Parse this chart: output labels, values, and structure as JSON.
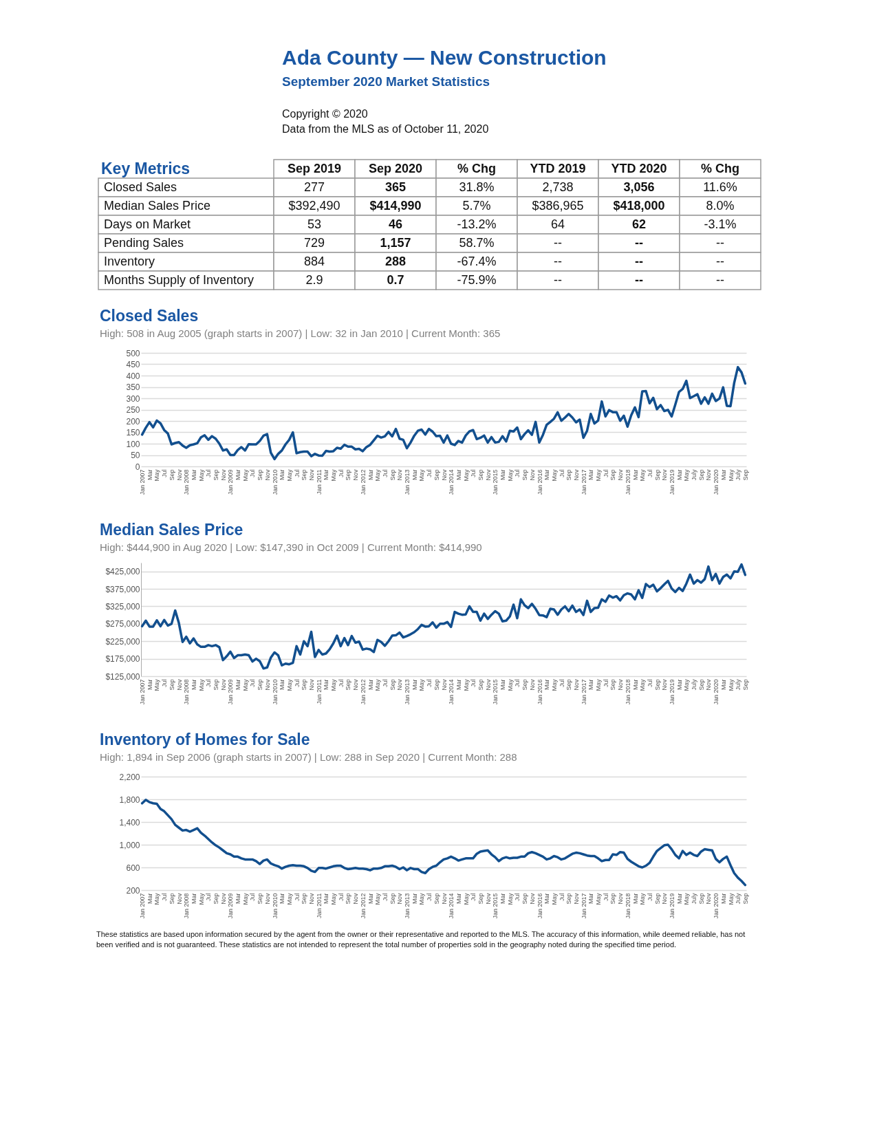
{
  "chart_data": [
    {
      "type": "other",
      "title": "Ada County — New Construction",
      "subtitle": "September 2020 Market Statistics",
      "annotations": [
        "Copyright © 2020",
        "Data from the MLS as of October 11, 2020"
      ]
    },
    {
      "type": "other",
      "title": "Key Metrics",
      "categories": [
        "Sep 2019",
        "Sep 2020",
        "% Chg",
        "YTD 2019",
        "YTD 2020",
        "% Chg"
      ],
      "y_categories": [
        "Closed Sales",
        "Median Sales Price",
        "Days on Market",
        "Pending Sales",
        "Inventory",
        "Months Supply of Inventory"
      ],
      "cell_labels": [
        [
          "277",
          "365",
          "31.8%",
          "2,738",
          "3,056",
          "11.6%"
        ],
        [
          "$392,490",
          "$414,990",
          "5.7%",
          "$386,965",
          "$418,000",
          "8.0%"
        ],
        [
          "53",
          "46",
          "-13.2%",
          "64",
          "62",
          "-3.1%"
        ],
        [
          "729",
          "1,157",
          "58.7%",
          "--",
          "--",
          "--"
        ],
        [
          "884",
          "288",
          "-67.4%",
          "--",
          "--",
          "--"
        ],
        [
          "2.9",
          "0.7",
          "-75.9%",
          "--",
          "--",
          "--"
        ]
      ]
    },
    {
      "type": "line",
      "title": "Closed Sales",
      "subtitle": "High: 508 in Aug 2005 (graph starts in 2007)  |  Low: 32 in Jan 2010  |  Current Month: 365",
      "categories": [
        "Jan 2007",
        null,
        "Mar",
        null,
        "May",
        null,
        "Jul",
        null,
        "Sep",
        null,
        "Nov",
        null,
        "Jan 2008",
        null,
        "Mar",
        null,
        "May",
        null,
        "Jul",
        null,
        "Sep",
        null,
        "Nov",
        null,
        "Jan 2009",
        null,
        "Mar",
        null,
        "May",
        null,
        "Jul",
        null,
        "Sep",
        null,
        "Nov",
        null,
        "Jan 2010",
        null,
        "Mar",
        null,
        "May",
        null,
        "Jul",
        null,
        "Sep",
        null,
        "Nov",
        null,
        "Jan 2011",
        null,
        "Mar",
        null,
        "May",
        null,
        "Jul",
        null,
        "Sep",
        null,
        "Nov",
        null,
        "Jan 2012",
        null,
        "Mar",
        null,
        "May",
        null,
        "Jul",
        null,
        "Sep",
        null,
        "Nov",
        null,
        "Jan 2013",
        null,
        "Mar",
        null,
        "May",
        null,
        "Jul",
        null,
        "Sep",
        null,
        "Nov",
        null,
        "Jan 2014",
        null,
        "Mar",
        null,
        "May",
        null,
        "Jul",
        null,
        "Sep",
        null,
        "Nov",
        null,
        "Jan 2015",
        null,
        "Mar",
        null,
        "May",
        null,
        "Jul",
        null,
        "Sep",
        null,
        "Nov",
        null,
        "Jan 2016",
        null,
        "Mar",
        null,
        "May",
        null,
        "Jul",
        null,
        "Sep",
        null,
        "Nov",
        null,
        "Jan 2017",
        null,
        "Mar",
        null,
        "May",
        null,
        "Jul",
        null,
        "Sep",
        null,
        "Nov",
        null,
        "Jan 2018",
        null,
        "Mar",
        null,
        "May",
        null,
        "Jul",
        null,
        "Sep",
        null,
        "Nov",
        null,
        "Jan 2019",
        null,
        "Mar",
        null,
        "May",
        null,
        "July",
        null,
        "Sep",
        null,
        "Nov",
        null,
        "Jan 2020",
        null,
        "Mar",
        null,
        "May",
        null,
        "July",
        null,
        "Sep"
      ],
      "series": [
        {
          "color": "#124f8e",
          "values": [
            140,
            170,
            195,
            172,
            202,
            190,
            160,
            145,
            97,
            103,
            107,
            92,
            82,
            93,
            97,
            102,
            128,
            137,
            117,
            133,
            122,
            100,
            70,
            75,
            50,
            50,
            72,
            85,
            70,
            98,
            97,
            97,
            112,
            135,
            142,
            60,
            32,
            55,
            70,
            97,
            117,
            150,
            58,
            63,
            65,
            65,
            45,
            55,
            48,
            47,
            68,
            65,
            67,
            82,
            78,
            95,
            87,
            87,
            75,
            77,
            67,
            85,
            95,
            115,
            135,
            127,
            132,
            152,
            132,
            165,
            122,
            117,
            80,
            105,
            135,
            157,
            162,
            140,
            165,
            153,
            133,
            135,
            105,
            136,
            100,
            94,
            112,
            105,
            136,
            154,
            160,
            120,
            126,
            136,
            105,
            129,
            105,
            108,
            133,
            110,
            157,
            154,
            171,
            120,
            142,
            159,
            139,
            196,
            105,
            139,
            183,
            196,
            210,
            238,
            201,
            215,
            231,
            215,
            194,
            206,
            126,
            157,
            231,
            189,
            202,
            286,
            220,
            248,
            239,
            239,
            201,
            223,
            175,
            225,
            260,
            217,
            330,
            332,
            278,
            302,
            252,
            270,
            244,
            249,
            220,
            273,
            328,
            341,
            377,
            301,
            309,
            318,
            276,
            304,
            276,
            320,
            288,
            299,
            348,
            267,
            265,
            367,
            437,
            414,
            365
          ]
        }
      ],
      "ylim": [
        0,
        500
      ],
      "yticks": [
        0,
        50,
        100,
        150,
        200,
        250,
        300,
        350,
        400,
        450,
        500
      ],
      "grid": "y"
    },
    {
      "type": "line",
      "title": "Median Sales Price",
      "subtitle": "High: $444,900 in Aug 2020  |  Low: $147,390 in Oct 2009  |  Current Month: $414,990",
      "categories": [
        "Jan 2007",
        null,
        "Mar",
        null,
        "May",
        null,
        "Jul",
        null,
        "Sep",
        null,
        "Nov",
        null,
        "Jan 2008",
        null,
        "Mar",
        null,
        "May",
        null,
        "Jul",
        null,
        "Sep",
        null,
        "Nov",
        null,
        "Jan 2009",
        null,
        "Mar",
        null,
        "May",
        null,
        "Jul",
        null,
        "Sep",
        null,
        "Nov",
        null,
        "Jan 2010",
        null,
        "Mar",
        null,
        "May",
        null,
        "Jul",
        null,
        "Sep",
        null,
        "Nov",
        null,
        "Jan 2011",
        null,
        "Mar",
        null,
        "May",
        null,
        "Jul",
        null,
        "Sep",
        null,
        "Nov",
        null,
        "Jan 2012",
        null,
        "Mar",
        null,
        "May",
        null,
        "Jul",
        null,
        "Sep",
        null,
        "Nov",
        null,
        "Jan 2013",
        null,
        "Mar",
        null,
        "May",
        null,
        "Jul",
        null,
        "Sep",
        null,
        "Nov",
        null,
        "Jan 2014",
        null,
        "Mar",
        null,
        "May",
        null,
        "Jul",
        null,
        "Sep",
        null,
        "Nov",
        null,
        "Jan 2015",
        null,
        "Mar",
        null,
        "May",
        null,
        "Jul",
        null,
        "Sep",
        null,
        "Nov",
        null,
        "Jan 2016",
        null,
        "Mar",
        null,
        "May",
        null,
        "Jul",
        null,
        "Sep",
        null,
        "Nov",
        null,
        "Jan 2017",
        null,
        "Mar",
        null,
        "May",
        null,
        "Jul",
        null,
        "Sep",
        null,
        "Nov",
        null,
        "Jan 2018",
        null,
        "Mar",
        null,
        "May",
        null,
        "Jul",
        null,
        "Sep",
        null,
        "Nov",
        null,
        "Jan 2019",
        null,
        "Mar",
        null,
        "May",
        null,
        "July",
        null,
        "Sep",
        null,
        "Nov",
        null,
        "Jan 2020",
        null,
        "Mar",
        null,
        "May",
        null,
        "July",
        null,
        "Sep"
      ],
      "series": [
        {
          "color": "#124f8e",
          "values": [
            268000,
            284000,
            267000,
            267000,
            285000,
            268000,
            286000,
            270000,
            275000,
            313000,
            277000,
            223000,
            238000,
            219000,
            233000,
            216000,
            209000,
            209000,
            214000,
            211000,
            214000,
            208000,
            171000,
            182000,
            195000,
            177000,
            185000,
            185000,
            187000,
            185000,
            167000,
            175000,
            168000,
            147000,
            150000,
            178000,
            193000,
            185000,
            156000,
            161000,
            159000,
            163000,
            211000,
            187000,
            225000,
            211000,
            252000,
            180000,
            200000,
            187000,
            190000,
            202000,
            219000,
            241000,
            211000,
            234000,
            214000,
            240000,
            221000,
            224000,
            201000,
            204000,
            202000,
            194000,
            229000,
            223000,
            212000,
            225000,
            241000,
            242000,
            250000,
            236000,
            240000,
            245000,
            251000,
            260000,
            272000,
            267000,
            268000,
            279000,
            264000,
            275000,
            275000,
            280000,
            266000,
            309000,
            304000,
            301000,
            302000,
            325000,
            309000,
            309000,
            284000,
            304000,
            289000,
            301000,
            311000,
            304000,
            282000,
            284000,
            296000,
            330000,
            291000,
            345000,
            328000,
            320000,
            332000,
            318000,
            300000,
            299000,
            294000,
            318000,
            316000,
            301000,
            316000,
            325000,
            311000,
            327000,
            309000,
            316000,
            300000,
            341000,
            309000,
            320000,
            321000,
            345000,
            338000,
            356000,
            350000,
            354000,
            342000,
            357000,
            362000,
            359000,
            345000,
            371000,
            349000,
            389000,
            380000,
            387000,
            368000,
            377000,
            388000,
            398000,
            376000,
            366000,
            378000,
            369000,
            390000,
            416000,
            390000,
            400000,
            393000,
            403000,
            439000,
            400000,
            418000,
            390000,
            409000,
            416000,
            405000,
            425000,
            424000,
            445000,
            415000
          ]
        }
      ],
      "ylim": [
        125000,
        450000
      ],
      "yticks": [
        {
          "value": 125000,
          "label": "$125,000"
        },
        {
          "value": 175000,
          "label": "$175,000"
        },
        {
          "value": 225000,
          "label": "$225,000"
        },
        {
          "value": 275000,
          "label": "$275,000"
        },
        {
          "value": 325000,
          "label": "$325,000"
        },
        {
          "value": 375000,
          "label": "$375,000"
        },
        {
          "value": 425000,
          "label": "$425,000"
        }
      ],
      "grid": "y"
    },
    {
      "type": "line",
      "title": "Inventory of Homes for Sale",
      "subtitle": "High: 1,894 in Sep 2006 (graph starts in 2007)  |  Low: 288 in Sep 2020 | Current Month: 288",
      "categories": [
        "Jan 2007",
        null,
        "Mar",
        null,
        "May",
        null,
        "Jul",
        null,
        "Sep",
        null,
        "Nov",
        null,
        "Jan 2008",
        null,
        "Mar",
        null,
        "May",
        null,
        "Jul",
        null,
        "Sep",
        null,
        "Nov",
        null,
        "Jan 2009",
        null,
        "Mar",
        null,
        "May",
        null,
        "Jul",
        null,
        "Sep",
        null,
        "Nov",
        null,
        "Jan 2010",
        null,
        "Mar",
        null,
        "May",
        null,
        "Jul",
        null,
        "Sep",
        null,
        "Nov",
        null,
        "Jan 2011",
        null,
        "Mar",
        null,
        "May",
        null,
        "Jul",
        null,
        "Sep",
        null,
        "Nov",
        null,
        "Jan 2012",
        null,
        "Mar",
        null,
        "May",
        null,
        "Jul",
        null,
        "Sep",
        null,
        "Nov",
        null,
        "Jan 2013",
        null,
        "Mar",
        null,
        "May",
        null,
        "Jul",
        null,
        "Sep",
        null,
        "Nov",
        null,
        "Jan 2014",
        null,
        "Mar",
        null,
        "May",
        null,
        "Jul",
        null,
        "Sep",
        null,
        "Nov",
        null,
        "Jan 2015",
        null,
        "Mar",
        null,
        "May",
        null,
        "Jul",
        null,
        "Sep",
        null,
        "Nov",
        null,
        "Jan 2016",
        null,
        "Mar",
        null,
        "May",
        null,
        "Jul",
        null,
        "Sep",
        null,
        "Nov",
        null,
        "Jan 2017",
        null,
        "Mar",
        null,
        "May",
        null,
        "Jul",
        null,
        "Sep",
        null,
        "Nov",
        null,
        "Jan 2018",
        null,
        "Mar",
        null,
        "May",
        null,
        "Jul",
        null,
        "Sep",
        null,
        "Nov",
        null,
        "Jan 2019",
        null,
        "Mar",
        null,
        "May",
        null,
        "July",
        null,
        "Sep",
        null,
        "Nov",
        null,
        "Jan 2020",
        null,
        "Mar",
        null,
        "May",
        null,
        "July",
        null,
        "Sep"
      ],
      "series": [
        {
          "color": "#124f8e",
          "values": [
            1730,
            1790,
            1750,
            1730,
            1720,
            1630,
            1590,
            1520,
            1450,
            1350,
            1300,
            1250,
            1260,
            1230,
            1260,
            1290,
            1210,
            1160,
            1100,
            1040,
            990,
            950,
            900,
            850,
            830,
            790,
            790,
            760,
            740,
            740,
            740,
            710,
            660,
            720,
            740,
            670,
            640,
            620,
            580,
            610,
            630,
            640,
            630,
            630,
            620,
            590,
            540,
            520,
            590,
            590,
            580,
            600,
            620,
            630,
            630,
            590,
            570,
            580,
            590,
            580,
            580,
            570,
            550,
            580,
            580,
            590,
            620,
            620,
            630,
            610,
            570,
            600,
            550,
            590,
            570,
            570,
            520,
            500,
            570,
            610,
            630,
            690,
            740,
            760,
            790,
            760,
            720,
            740,
            760,
            760,
            760,
            840,
            880,
            890,
            900,
            830,
            780,
            710,
            760,
            780,
            760,
            770,
            770,
            790,
            790,
            850,
            870,
            850,
            820,
            790,
            740,
            760,
            800,
            780,
            740,
            760,
            800,
            840,
            860,
            850,
            830,
            810,
            800,
            800,
            760,
            710,
            730,
            730,
            830,
            820,
            870,
            860,
            750,
            700,
            660,
            620,
            600,
            630,
            680,
            790,
            890,
            940,
            990,
            1000,
            920,
            820,
            760,
            890,
            820,
            860,
            820,
            800,
            880,
            920,
            910,
            900,
            750,
            690,
            750,
            790,
            640,
            500,
            420,
            360,
            290
          ]
        }
      ],
      "ylim": [
        200,
        2200
      ],
      "yticks": [
        200,
        600,
        {
          "value": 1000,
          "label": "1,000"
        },
        {
          "value": 1400,
          "label": "1,400"
        },
        {
          "value": 1800,
          "label": "1,800"
        },
        {
          "value": 2200,
          "label": "2,200"
        }
      ],
      "grid": "y",
      "annotations": [
        "These statistics are based upon information secured by the agent from the owner or their representative and reported to the MLS. The accuracy of this information, while deemed reliable, has not been verified and is not guaranteed. These statistics are not intended to represent the total number of properties sold in the geography noted during the specified time period."
      ]
    }
  ]
}
